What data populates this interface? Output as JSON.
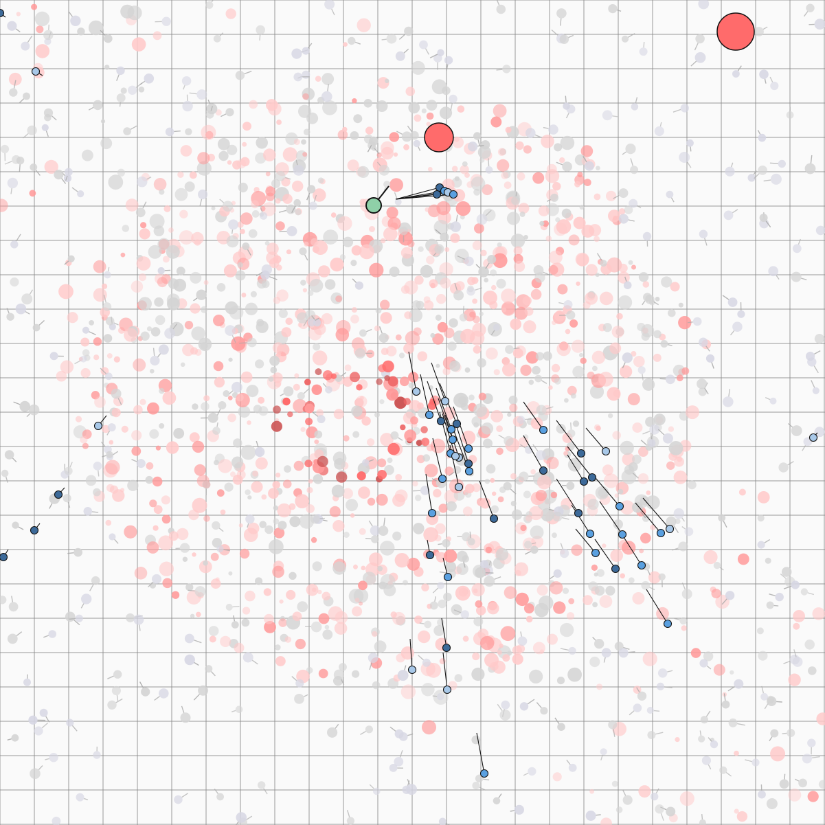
{
  "colors": {
    "background": "#fafafa",
    "grid_line": "#888888",
    "food_faint": "#ffc9c9",
    "food_mid": "#ff9a9a",
    "food_strong": "#ee6666",
    "food_dark": "#cc5555",
    "big_red": "#ff6b6b",
    "ghost_gray": "#d4d4d4",
    "ghost_blue": "#d7d7e4",
    "agent_light": "#a8c8e8",
    "agent_mid": "#5aa0e0",
    "agent_dark": "#3d6a99",
    "player": "#8fd0a8",
    "outline": "#111111"
  },
  "entities": {
    "player": {
      "name": "player-cell",
      "icon": "green-circle"
    },
    "big_food": [
      {
        "name": "big-red-orb",
        "icon": "red-circle"
      },
      {
        "name": "big-red-orb",
        "icon": "red-circle"
      }
    ],
    "agent_swarm": {
      "name": "blue-agent",
      "count": 52,
      "icon": "blue-circle-with-trail"
    },
    "food_ring": {
      "name": "red-food-ring",
      "icon": "red-dot"
    }
  }
}
